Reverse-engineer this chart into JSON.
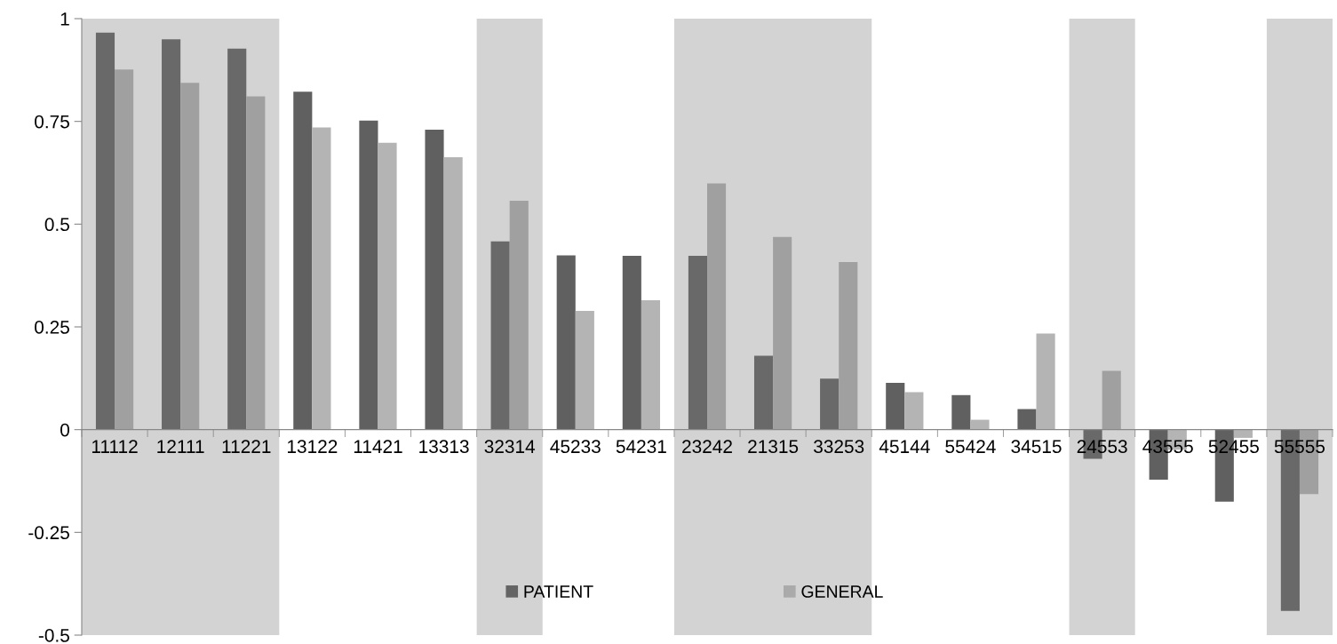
{
  "chart_data": {
    "type": "bar",
    "categories": [
      "11112",
      "12111",
      "11221",
      "13122",
      "11421",
      "13313",
      "32314",
      "45233",
      "54231",
      "23242",
      "21315",
      "33253",
      "45144",
      "55424",
      "34515",
      "24553",
      "43555",
      "52455",
      "55555"
    ],
    "series": [
      {
        "name": "PATIENT",
        "color": "#646464",
        "colors": [
          "#696969",
          "#696969",
          "#696969",
          "#606060",
          "#606060",
          "#606060",
          "#696969",
          "#606060",
          "#606060",
          "#696969",
          "#696969",
          "#696969",
          "#606060",
          "#606060",
          "#606060",
          "#696969",
          "#606060",
          "#606060",
          "#696969"
        ],
        "values": [
          0.966,
          0.95,
          0.927,
          0.822,
          0.752,
          0.73,
          0.458,
          0.424,
          0.423,
          0.423,
          0.18,
          0.124,
          0.114,
          0.084,
          0.05,
          -0.071,
          -0.122,
          -0.175,
          -0.441
        ]
      },
      {
        "name": "GENERAL",
        "color": "#aaaaaa",
        "colors": [
          "#a0a0a0",
          "#a0a0a0",
          "#a0a0a0",
          "#b4b4b4",
          "#b4b4b4",
          "#b4b4b4",
          "#a0a0a0",
          "#b4b4b4",
          "#b4b4b4",
          "#a0a0a0",
          "#a0a0a0",
          "#a0a0a0",
          "#b4b4b4",
          "#b4b4b4",
          "#b4b4b4",
          "#a0a0a0",
          "#b4b4b4",
          "#b4b4b4",
          "#a0a0a0"
        ],
        "values": [
          0.876,
          0.844,
          0.811,
          0.735,
          0.698,
          0.663,
          0.557,
          0.289,
          0.315,
          0.599,
          0.469,
          0.408,
          0.091,
          0.024,
          0.234,
          0.143,
          -0.049,
          -0.02,
          -0.157
        ]
      }
    ],
    "ylim": [
      -0.5,
      1
    ],
    "yticks": [
      -0.5,
      -0.25,
      0,
      0.25,
      0.5,
      0.75,
      1
    ],
    "bands": [
      {
        "axis": "x",
        "from": "11112",
        "to": "11221",
        "color": "#d3d3d3"
      },
      {
        "axis": "x",
        "from": "32314",
        "to": "32314",
        "color": "#d3d3d3"
      },
      {
        "axis": "x",
        "from": "23242",
        "to": "33253",
        "color": "#d3d3d3"
      },
      {
        "axis": "x",
        "from": "24553",
        "to": "24553",
        "color": "#d3d3d3"
      },
      {
        "axis": "x",
        "from": "55555",
        "to": "55555",
        "color": "#d3d3d3"
      }
    ],
    "grid": false,
    "legend": "bottom"
  }
}
